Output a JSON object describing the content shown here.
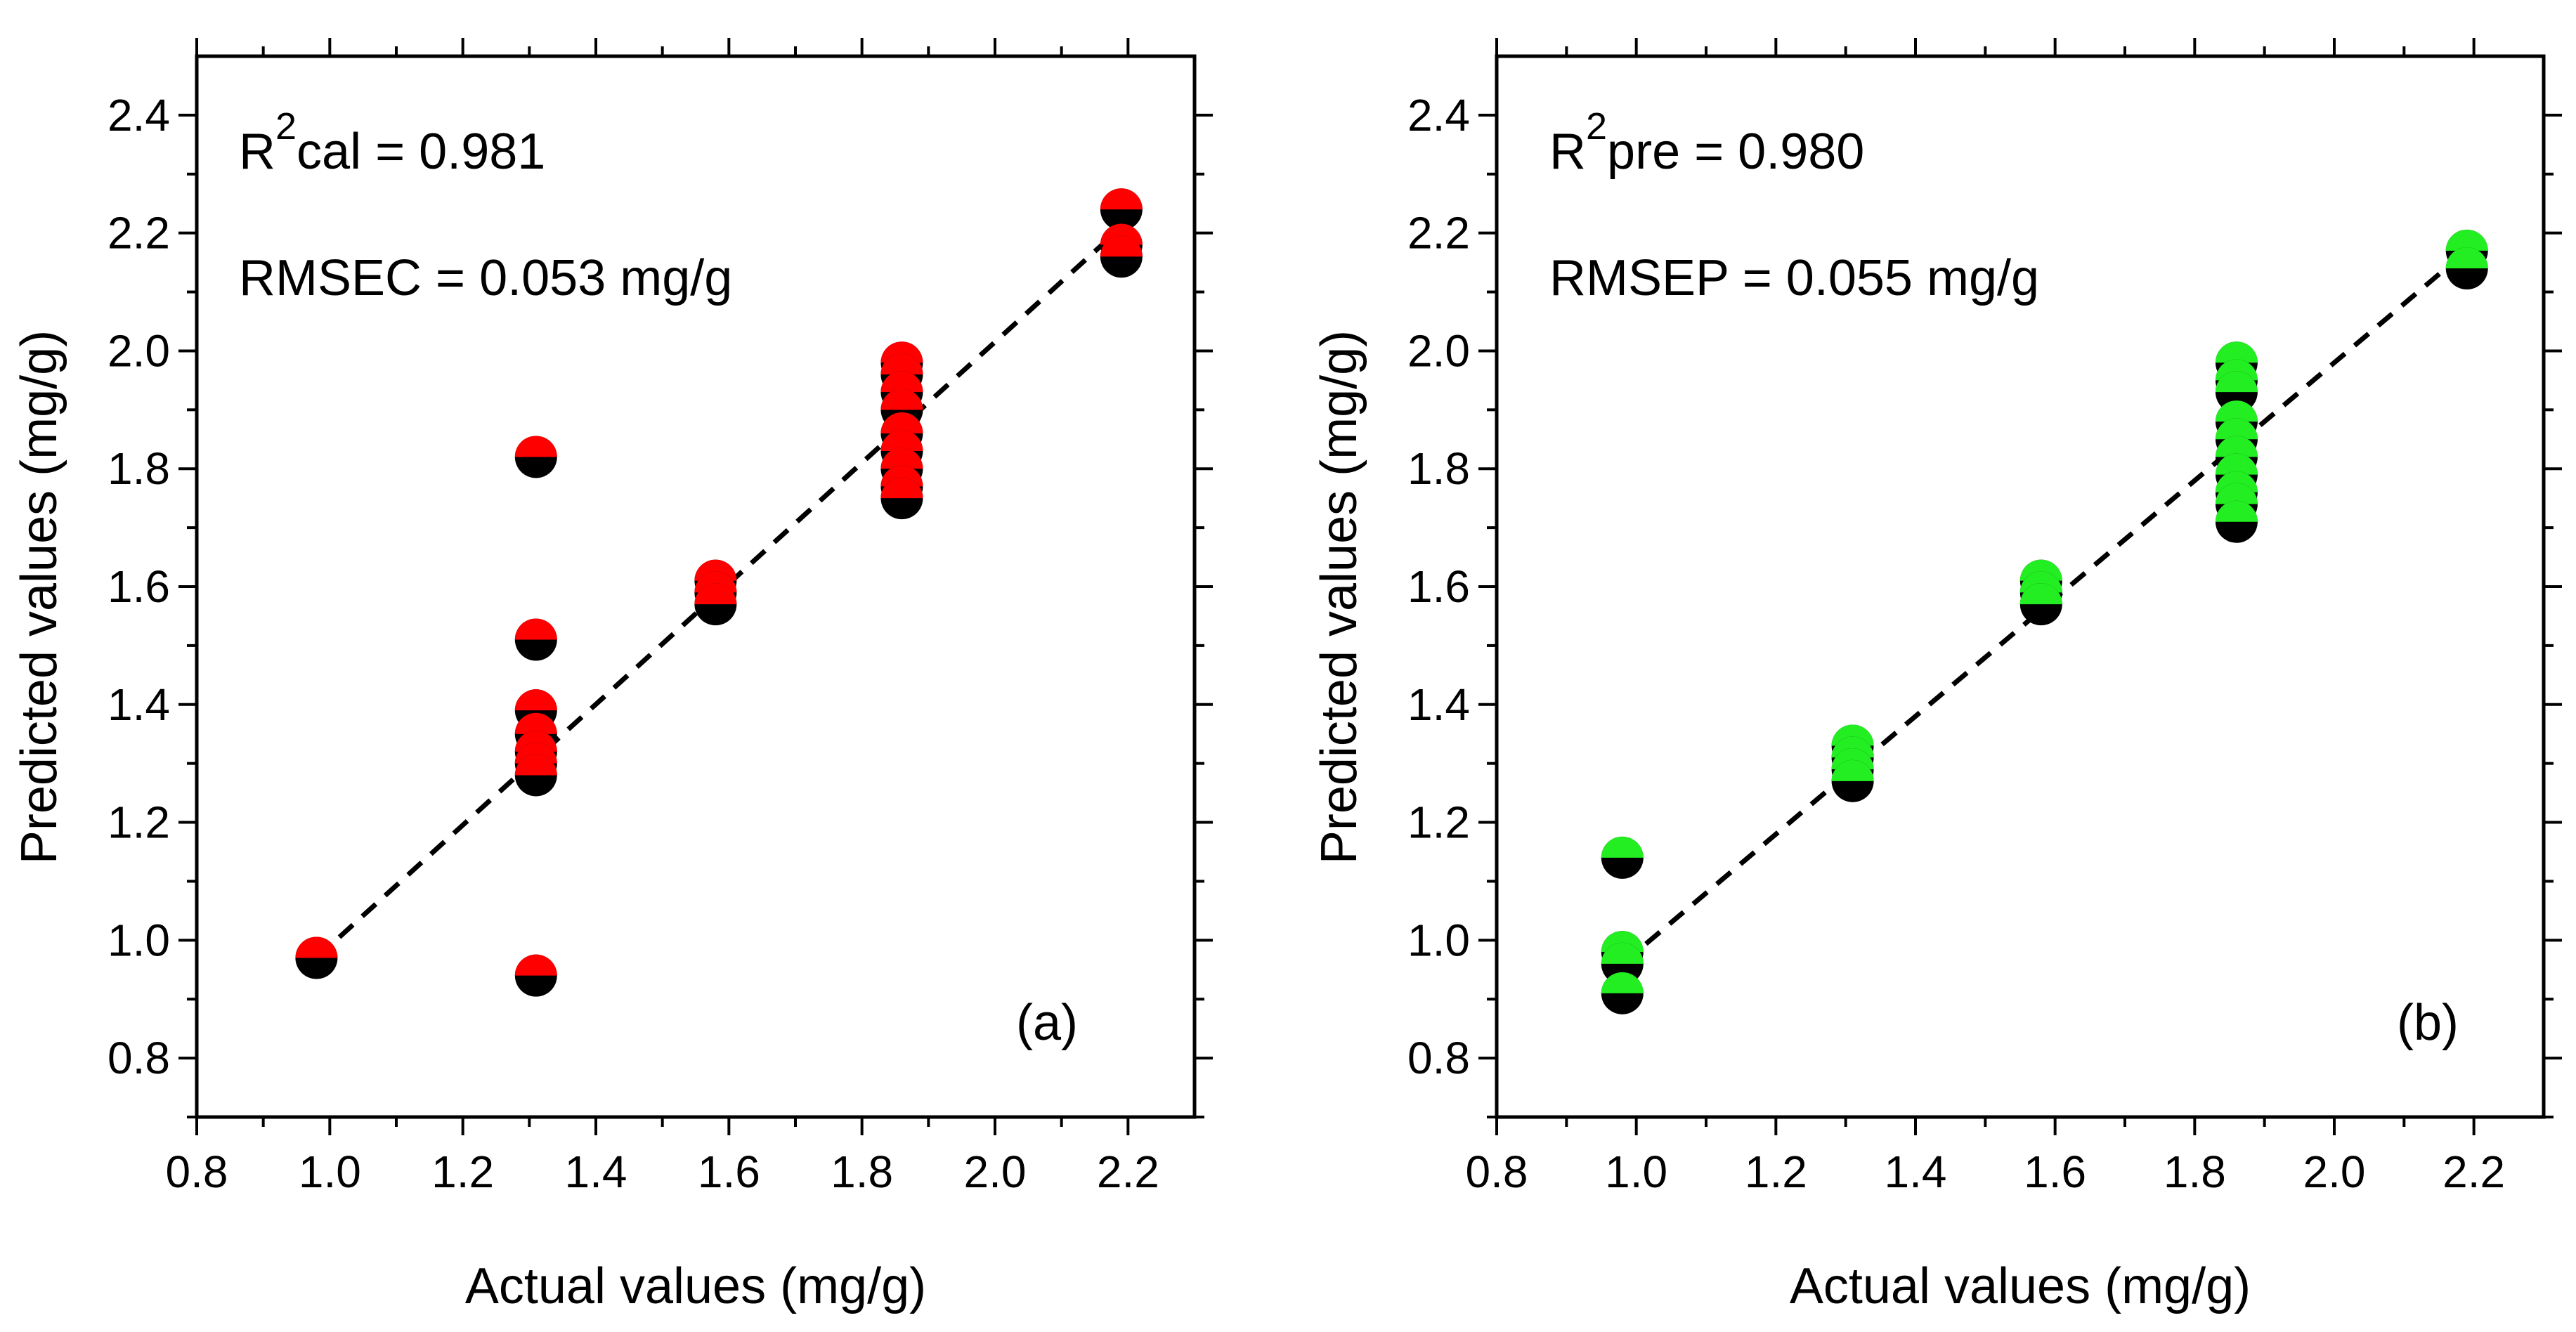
{
  "chart_data": [
    {
      "panel": "(a)",
      "type": "scatter",
      "xlabel": "Actual values (mg/g)",
      "ylabel": "Predicted values (mg/g)",
      "xlim": [
        0.8,
        2.3
      ],
      "ylim": [
        0.7,
        2.5
      ],
      "xticks": [
        "0.8",
        "1.0",
        "1.2",
        "1.4",
        "1.6",
        "1.8",
        "2.0",
        "2.2"
      ],
      "yticks": [
        "0.8",
        "1.0",
        "1.2",
        "1.4",
        "1.6",
        "1.8",
        "2.0",
        "2.2",
        "2.4"
      ],
      "annotation_r2_base": "R",
      "annotation_r2_sup": "2",
      "annotation_r2_rest": "cal = 0.981",
      "annotation_rmse": "RMSEC = 0.053 mg/g",
      "marker_color": "#ff0000",
      "fit_line": {
        "x": [
          0.98,
          2.2
        ],
        "y": [
          0.97,
          2.22
        ]
      },
      "points": [
        {
          "x": 0.98,
          "y": 0.97
        },
        {
          "x": 1.31,
          "y": 1.82
        },
        {
          "x": 1.31,
          "y": 1.51
        },
        {
          "x": 1.31,
          "y": 1.39
        },
        {
          "x": 1.31,
          "y": 1.35
        },
        {
          "x": 1.31,
          "y": 1.32
        },
        {
          "x": 1.31,
          "y": 1.3
        },
        {
          "x": 1.31,
          "y": 1.28
        },
        {
          "x": 1.31,
          "y": 0.94
        },
        {
          "x": 1.58,
          "y": 1.61
        },
        {
          "x": 1.58,
          "y": 1.59
        },
        {
          "x": 1.58,
          "y": 1.57
        },
        {
          "x": 1.86,
          "y": 1.98
        },
        {
          "x": 1.86,
          "y": 1.96
        },
        {
          "x": 1.86,
          "y": 1.93
        },
        {
          "x": 1.86,
          "y": 1.9
        },
        {
          "x": 1.86,
          "y": 1.86
        },
        {
          "x": 1.86,
          "y": 1.83
        },
        {
          "x": 1.86,
          "y": 1.8
        },
        {
          "x": 1.86,
          "y": 1.77
        },
        {
          "x": 1.86,
          "y": 1.75
        },
        {
          "x": 2.19,
          "y": 2.24
        },
        {
          "x": 2.19,
          "y": 2.18
        },
        {
          "x": 2.19,
          "y": 2.16
        }
      ]
    },
    {
      "panel": "(b)",
      "type": "scatter",
      "xlabel": "Actual values (mg/g)",
      "ylabel": "Predicted values (mg/g)",
      "xlim": [
        0.8,
        2.3
      ],
      "ylim": [
        0.7,
        2.5
      ],
      "xticks": [
        "0.8",
        "1.0",
        "1.2",
        "1.4",
        "1.6",
        "1.8",
        "2.0",
        "2.2"
      ],
      "yticks": [
        "0.8",
        "1.0",
        "1.2",
        "1.4",
        "1.6",
        "1.8",
        "2.0",
        "2.2",
        "2.4"
      ],
      "annotation_r2_base": "R",
      "annotation_r2_sup": "2",
      "annotation_r2_rest": "pre = 0.980",
      "annotation_rmse": "RMSEP = 0.055 mg/g",
      "marker_color": "#22ee22",
      "fit_line": {
        "x": [
          0.98,
          2.2
        ],
        "y": [
          0.96,
          2.18
        ]
      },
      "points": [
        {
          "x": 0.98,
          "y": 1.14
        },
        {
          "x": 0.98,
          "y": 0.98
        },
        {
          "x": 0.98,
          "y": 0.96
        },
        {
          "x": 0.98,
          "y": 0.91
        },
        {
          "x": 1.31,
          "y": 1.33
        },
        {
          "x": 1.31,
          "y": 1.31
        },
        {
          "x": 1.31,
          "y": 1.29
        },
        {
          "x": 1.31,
          "y": 1.27
        },
        {
          "x": 1.58,
          "y": 1.61
        },
        {
          "x": 1.58,
          "y": 1.59
        },
        {
          "x": 1.58,
          "y": 1.57
        },
        {
          "x": 1.86,
          "y": 1.98
        },
        {
          "x": 1.86,
          "y": 1.95
        },
        {
          "x": 1.86,
          "y": 1.93
        },
        {
          "x": 1.86,
          "y": 1.88
        },
        {
          "x": 1.86,
          "y": 1.85
        },
        {
          "x": 1.86,
          "y": 1.82
        },
        {
          "x": 1.86,
          "y": 1.79
        },
        {
          "x": 1.86,
          "y": 1.76
        },
        {
          "x": 1.86,
          "y": 1.74
        },
        {
          "x": 1.86,
          "y": 1.71
        },
        {
          "x": 2.19,
          "y": 2.17
        },
        {
          "x": 2.19,
          "y": 2.14
        }
      ]
    }
  ]
}
